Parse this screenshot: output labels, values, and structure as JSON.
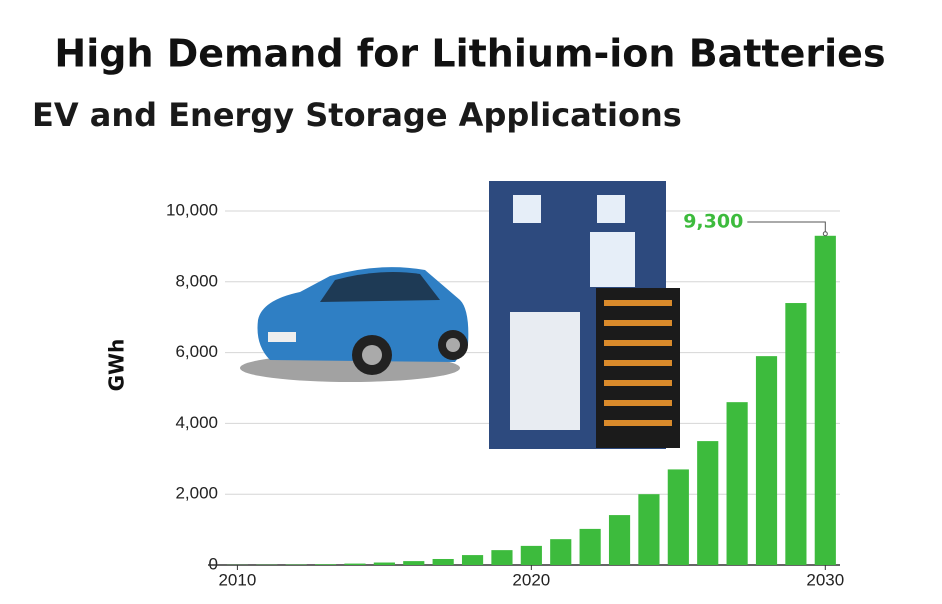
{
  "chart_data": {
    "type": "bar",
    "title": "High Demand for Lithium-ion Batteries",
    "subtitle": "EV and Energy Storage Applications",
    "y_label": "GWh",
    "x": [
      2010,
      2011,
      2012,
      2013,
      2014,
      2015,
      2016,
      2017,
      2018,
      2019,
      2020,
      2021,
      2022,
      2023,
      2024,
      2025,
      2026,
      2027,
      2028,
      2029,
      2030
    ],
    "values": [
      5,
      8,
      12,
      20,
      40,
      70,
      110,
      170,
      280,
      420,
      540,
      730,
      1020,
      1410,
      2000,
      2700,
      3500,
      4600,
      5900,
      7400,
      9300
    ],
    "value_labels": [
      null,
      null,
      null,
      null,
      null,
      null,
      null,
      null,
      null,
      null,
      null,
      null,
      null,
      null,
      null,
      null,
      null,
      null,
      null,
      null,
      "9,300"
    ],
    "color": "#3dbb3d",
    "xlim": [
      2009,
      2030.5
    ],
    "xticks": [
      2010,
      2020,
      2030
    ],
    "ylim": [
      0,
      10000
    ],
    "yticks": [
      0,
      {
        "value": 2000,
        "label": "2,000"
      },
      {
        "value": 4000,
        "label": "4,000"
      },
      {
        "value": 6000,
        "label": "6,000"
      },
      {
        "value": 8000,
        "label": "8,000"
      },
      {
        "value": 10000,
        "label": "10,000"
      }
    ],
    "grid": true
  }
}
